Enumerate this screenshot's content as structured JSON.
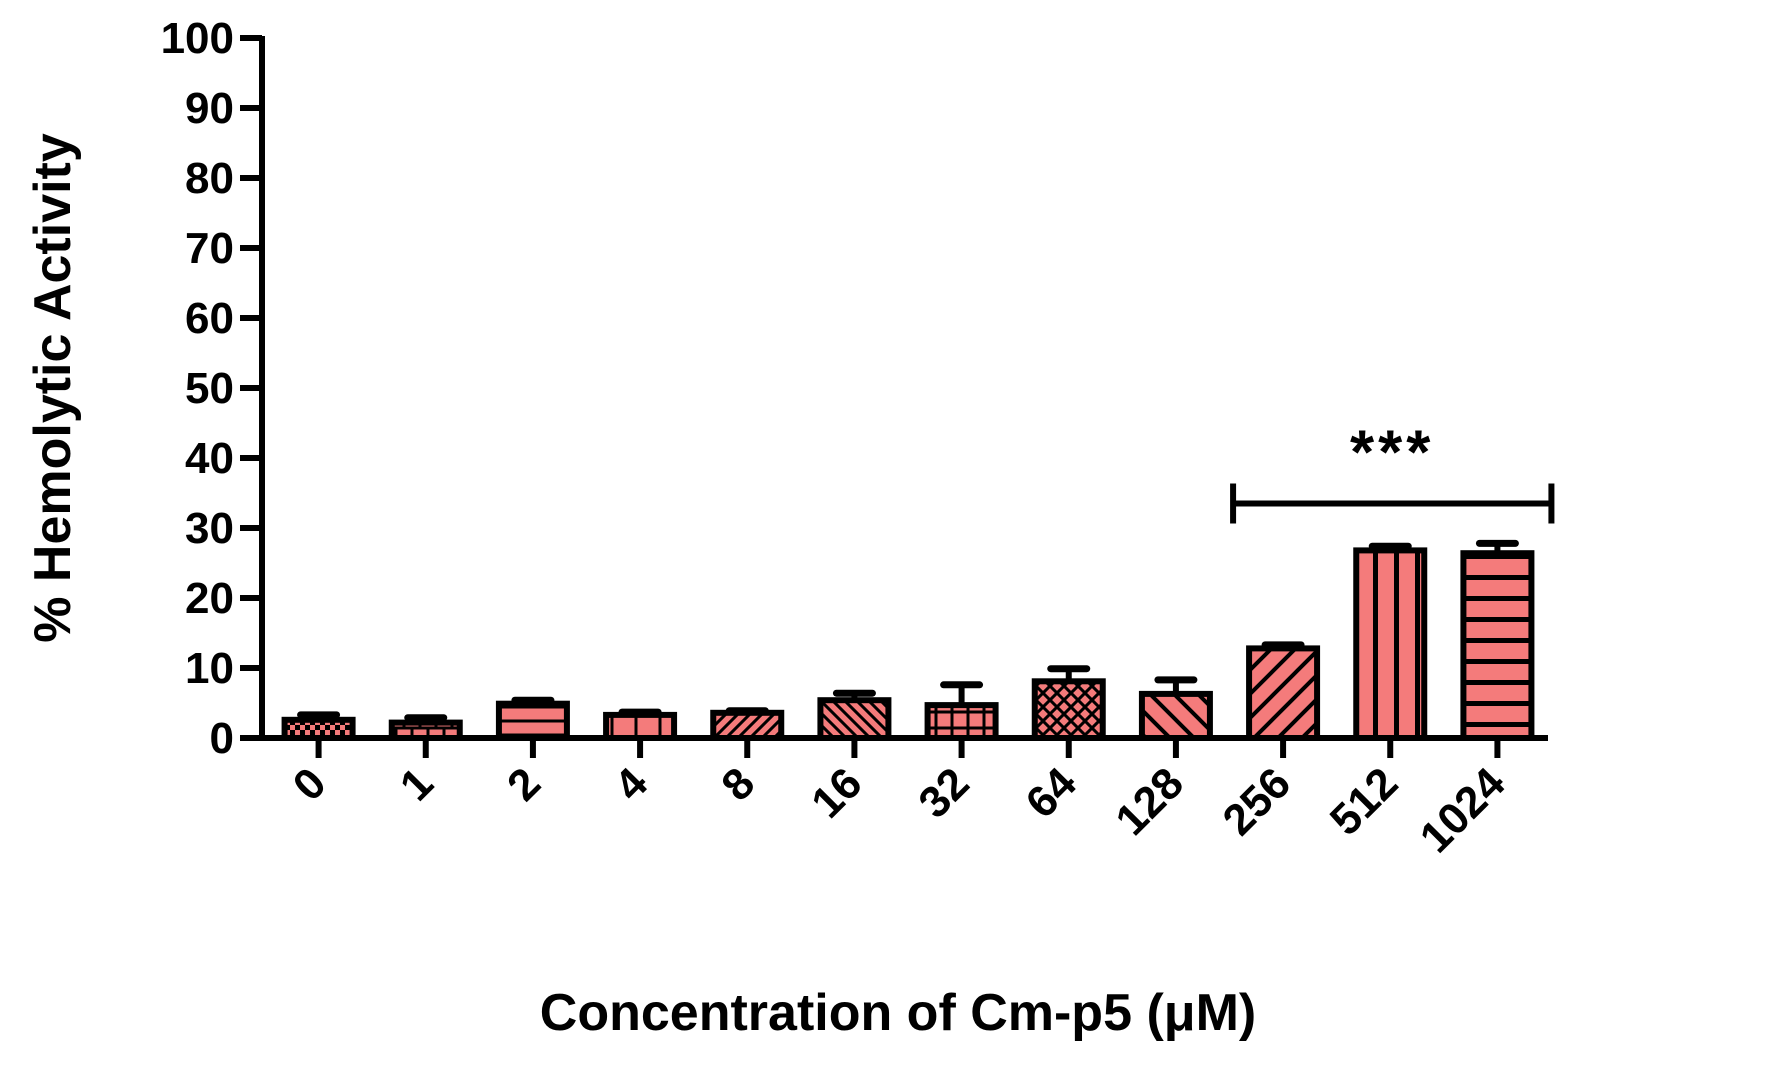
{
  "chart_data": {
    "type": "bar",
    "title": "",
    "xlabel": "Concentration of Cm-p5 (μM)",
    "ylabel": "% Hemolytic Activity",
    "ylim": [
      0,
      100
    ],
    "yticks": [
      "0",
      "10",
      "20",
      "30",
      "40",
      "50",
      "60",
      "70",
      "80",
      "90",
      "100"
    ],
    "categories": [
      "0",
      "1",
      "2",
      "4",
      "8",
      "16",
      "32",
      "64",
      "128",
      "256",
      "512",
      "1024"
    ],
    "values": [
      2.6,
      2.2,
      4.9,
      3.3,
      3.6,
      5.4,
      4.7,
      8.1,
      6.3,
      12.8,
      26.8,
      26.4
    ],
    "error": [
      0.7,
      0.7,
      0.5,
      0.4,
      0.3,
      1.0,
      2.9,
      1.8,
      2.0,
      0.5,
      0.6,
      1.4
    ],
    "patterns": [
      "checker",
      "brick",
      "hlines",
      "vlines",
      "diag-up-dense",
      "diag-down-dense",
      "grid",
      "crosshatch",
      "diag-down",
      "diag-up",
      "vlines-wide",
      "hlines-wide"
    ],
    "bar_color": "#f47b7b",
    "significance": {
      "label": "***",
      "from": "256",
      "to": "1024",
      "y": 33.5
    },
    "legend": "none",
    "grid": false
  }
}
